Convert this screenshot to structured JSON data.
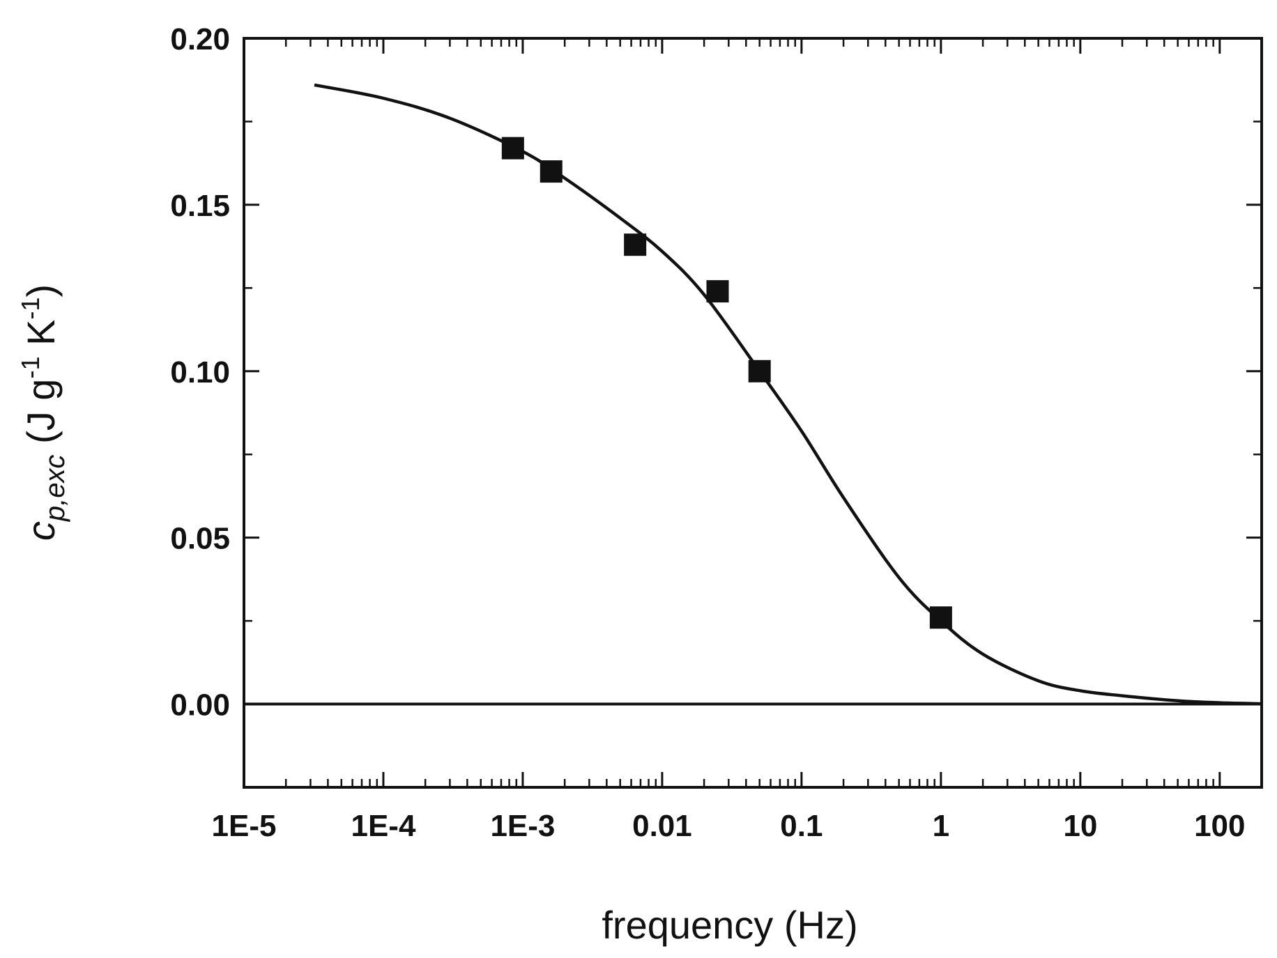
{
  "chart_data": {
    "type": "scatter",
    "xlabel": "frequency (Hz)",
    "ylabel": {
      "symbol": "c",
      "subscript": "p,exc",
      "unit_open": " (J g",
      "exp1": "-1",
      "unit_mid": " K",
      "exp2": "-1",
      "unit_close": ")"
    },
    "x_scale": "log",
    "xlim": [
      1e-05,
      200
    ],
    "ylim": [
      -0.025,
      0.2
    ],
    "x_ticks": [
      1e-05,
      0.0001,
      0.001,
      0.01,
      0.1,
      1,
      10,
      100
    ],
    "x_tick_labels": [
      "1E-5",
      "1E-4",
      "1E-3",
      "0.01",
      "0.1",
      "1",
      "10",
      "100"
    ],
    "y_ticks": [
      0.0,
      0.05,
      0.1,
      0.15,
      0.2
    ],
    "y_tick_labels": [
      "0.00",
      "0.05",
      "0.10",
      "0.15",
      "0.20"
    ],
    "grid": false,
    "legend": "none",
    "series": [
      {
        "kind": "points",
        "marker": "square",
        "color": "#111111",
        "x": [
          0.00085,
          0.0016,
          0.0064,
          0.025,
          0.05,
          1.0
        ],
        "y": [
          0.167,
          0.16,
          0.138,
          0.124,
          0.1,
          0.026
        ]
      },
      {
        "kind": "line",
        "color": "#111111",
        "x": [
          3.2e-05,
          0.0001,
          0.0003,
          0.001,
          0.002,
          0.005,
          0.01,
          0.02,
          0.05,
          0.1,
          0.2,
          0.5,
          1,
          2,
          5,
          10,
          20,
          50,
          100,
          200
        ],
        "y": [
          0.186,
          0.182,
          0.176,
          0.166,
          0.158,
          0.146,
          0.136,
          0.123,
          0.1,
          0.082,
          0.062,
          0.038,
          0.025,
          0.015,
          0.007,
          0.004,
          0.0025,
          0.001,
          0.0004,
          0.0001
        ]
      },
      {
        "kind": "reference-line",
        "color": "#111111",
        "y": 0.0
      }
    ]
  }
}
